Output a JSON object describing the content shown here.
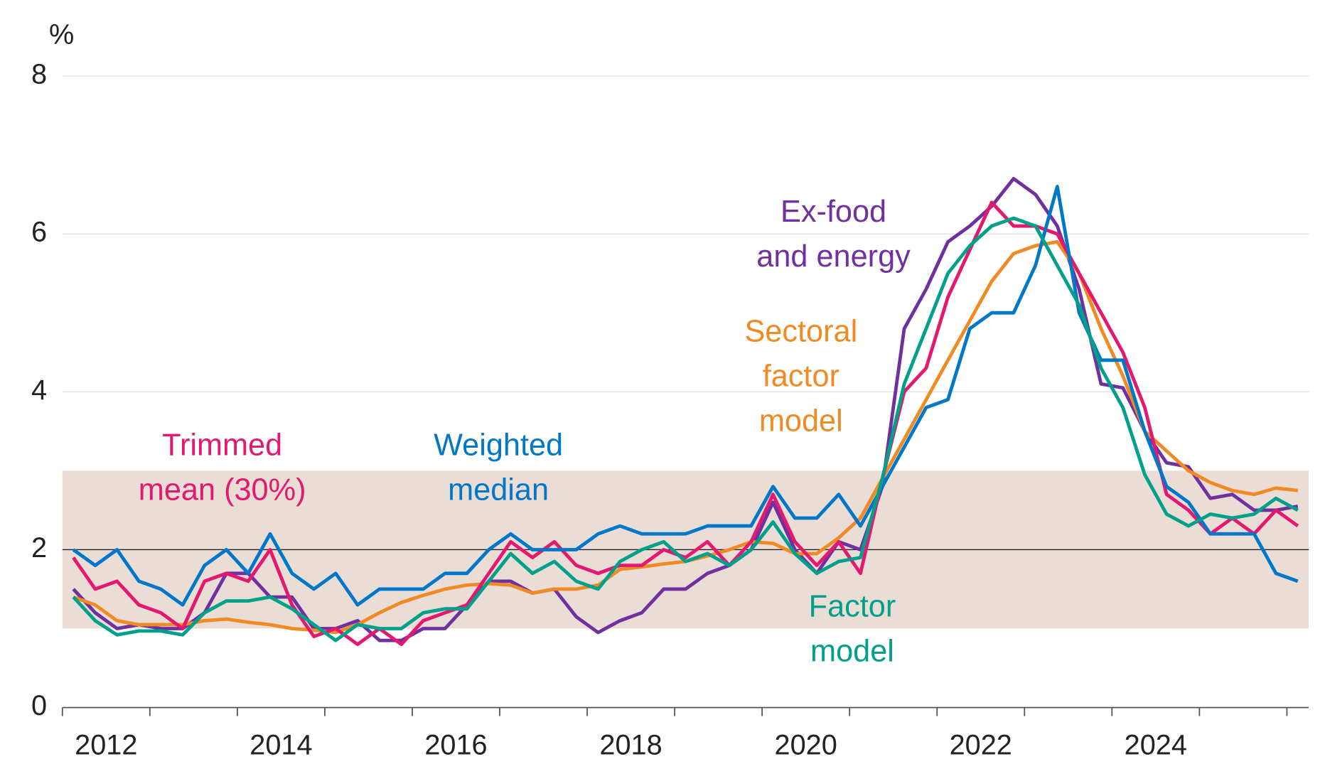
{
  "chart_data": {
    "type": "line",
    "y_unit": "%",
    "xlim": [
      2012,
      2026.25
    ],
    "xticks": [
      2012,
      2013,
      2014,
      2015,
      2016,
      2017,
      2018,
      2019,
      2020,
      2021,
      2022,
      2023,
      2024,
      2025,
      2026
    ],
    "xlabels": [
      2012,
      2014,
      2016,
      2018,
      2020,
      2022,
      2024
    ],
    "ylim": [
      0,
      8
    ],
    "yticks": [
      0,
      2,
      4,
      6,
      8
    ],
    "grid": true,
    "band": [
      1,
      3
    ],
    "band_color": "#eaddd6",
    "reference_line": 2,
    "x": [
      2012.125,
      2012.375,
      2012.625,
      2012.875,
      2013.125,
      2013.375,
      2013.625,
      2013.875,
      2014.125,
      2014.375,
      2014.625,
      2014.875,
      2015.125,
      2015.375,
      2015.625,
      2015.875,
      2016.125,
      2016.375,
      2016.625,
      2016.875,
      2017.125,
      2017.375,
      2017.625,
      2017.875,
      2018.125,
      2018.375,
      2018.625,
      2018.875,
      2019.125,
      2019.375,
      2019.625,
      2019.875,
      2020.125,
      2020.375,
      2020.625,
      2020.875,
      2021.125,
      2021.375,
      2021.625,
      2021.875,
      2022.125,
      2022.375,
      2022.625,
      2022.875,
      2023.125,
      2023.375,
      2023.625,
      2023.875,
      2024.125,
      2024.375,
      2024.625,
      2024.875,
      2025.125,
      2025.375,
      2025.625,
      2025.875,
      2026.125
    ],
    "series": [
      {
        "label": [
          "Ex-food",
          "and energy"
        ],
        "color": "#7030a0",
        "values": [
          1.5,
          1.2,
          1.0,
          1.05,
          1.0,
          1.0,
          1.2,
          1.7,
          1.7,
          1.4,
          1.4,
          1.0,
          1.0,
          1.1,
          0.85,
          0.85,
          1.0,
          1.0,
          1.3,
          1.6,
          1.6,
          1.45,
          1.5,
          1.15,
          0.95,
          1.1,
          1.2,
          1.5,
          1.5,
          1.7,
          1.8,
          2.0,
          2.6,
          2.0,
          1.7,
          2.1,
          2.0,
          2.8,
          4.8,
          5.3,
          5.9,
          6.1,
          6.35,
          6.7,
          6.5,
          6.1,
          5.3,
          4.1,
          4.05,
          3.5,
          3.1,
          3.05,
          2.65,
          2.7,
          2.5,
          2.5,
          2.55
        ]
      },
      {
        "label": [
          "Sectoral",
          "factor",
          "model"
        ],
        "color": "#f08a24",
        "values": [
          1.4,
          1.3,
          1.1,
          1.05,
          1.05,
          1.05,
          1.1,
          1.12,
          1.08,
          1.05,
          1.0,
          0.98,
          0.95,
          1.05,
          1.2,
          1.33,
          1.42,
          1.5,
          1.55,
          1.57,
          1.55,
          1.45,
          1.5,
          1.5,
          1.55,
          1.75,
          1.78,
          1.82,
          1.85,
          1.92,
          2.0,
          2.1,
          2.08,
          1.95,
          1.95,
          2.15,
          2.4,
          2.9,
          3.4,
          3.9,
          4.4,
          4.9,
          5.4,
          5.75,
          5.85,
          5.9,
          5.5,
          4.8,
          4.2,
          3.5,
          3.25,
          3.0,
          2.85,
          2.75,
          2.7,
          2.78,
          2.75
        ]
      },
      {
        "label": [
          "Trimmed",
          "mean (30%)"
        ],
        "color": "#e5186f",
        "values": [
          1.9,
          1.5,
          1.6,
          1.3,
          1.2,
          1.0,
          1.6,
          1.7,
          1.6,
          2.0,
          1.3,
          0.9,
          1.0,
          0.8,
          1.0,
          0.8,
          1.1,
          1.2,
          1.3,
          1.7,
          2.1,
          1.9,
          2.1,
          1.8,
          1.7,
          1.8,
          1.8,
          2.0,
          1.9,
          2.1,
          1.8,
          2.1,
          2.7,
          2.1,
          1.8,
          2.1,
          1.7,
          2.9,
          4.0,
          4.3,
          5.2,
          5.8,
          6.4,
          6.1,
          6.1,
          6.0,
          5.5,
          5.0,
          4.5,
          3.8,
          2.7,
          2.5,
          2.2,
          2.4,
          2.2,
          2.5,
          2.3
        ]
      },
      {
        "label": [
          "Weighted",
          "median"
        ],
        "color": "#0077c8",
        "values": [
          2.0,
          1.8,
          2.0,
          1.6,
          1.5,
          1.3,
          1.8,
          2.0,
          1.7,
          2.2,
          1.7,
          1.5,
          1.7,
          1.3,
          1.5,
          1.5,
          1.5,
          1.7,
          1.7,
          2.0,
          2.2,
          2.0,
          2.0,
          2.0,
          2.2,
          2.3,
          2.2,
          2.2,
          2.2,
          2.3,
          2.3,
          2.3,
          2.8,
          2.4,
          2.4,
          2.7,
          2.3,
          2.8,
          3.3,
          3.8,
          3.9,
          4.8,
          5.0,
          5.0,
          5.6,
          6.6,
          5.0,
          4.4,
          4.4,
          3.5,
          2.8,
          2.6,
          2.2,
          2.2,
          2.2,
          1.7,
          1.6
        ]
      },
      {
        "label": [
          "Factor",
          "model"
        ],
        "color": "#00a08a",
        "values": [
          1.4,
          1.1,
          0.92,
          0.97,
          0.97,
          0.92,
          1.2,
          1.35,
          1.35,
          1.4,
          1.25,
          1.05,
          0.85,
          1.05,
          1.0,
          1.0,
          1.2,
          1.25,
          1.25,
          1.6,
          1.95,
          1.7,
          1.85,
          1.6,
          1.5,
          1.85,
          2.0,
          2.1,
          1.85,
          1.95,
          1.8,
          2.0,
          2.35,
          1.95,
          1.7,
          1.85,
          1.9,
          2.9,
          4.1,
          4.8,
          5.5,
          5.85,
          6.1,
          6.2,
          6.1,
          5.6,
          5.1,
          4.3,
          3.8,
          2.95,
          2.45,
          2.3,
          2.45,
          2.4,
          2.45,
          2.65,
          2.5
        ]
      }
    ]
  }
}
